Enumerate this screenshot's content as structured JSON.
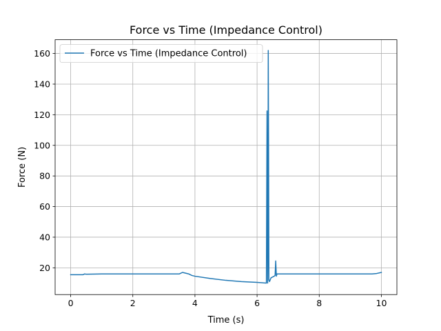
{
  "chart_data": {
    "type": "line",
    "title": "Force vs Time (Impedance Control)",
    "xlabel": "Time (s)",
    "ylabel": "Force (N)",
    "xlim": [
      -0.5,
      10.5
    ],
    "ylim": [
      2.5,
      169
    ],
    "xticks": [
      0,
      2,
      4,
      6,
      8,
      10
    ],
    "yticks": [
      20,
      40,
      60,
      80,
      100,
      120,
      140,
      160
    ],
    "grid": true,
    "legend_position": "top-left",
    "series": [
      {
        "name": "Force vs Time (Impedance Control)",
        "color": "#1f77b4",
        "x": [
          0.0,
          0.2,
          0.4,
          0.45,
          0.5,
          1.0,
          1.5,
          2.0,
          2.5,
          3.0,
          3.5,
          3.6,
          3.7,
          3.8,
          3.9,
          4.0,
          4.5,
          5.0,
          5.5,
          6.0,
          6.3,
          6.32,
          6.33,
          6.34,
          6.35,
          6.36,
          6.37,
          6.38,
          6.4,
          6.45,
          6.5,
          6.55,
          6.58,
          6.6,
          6.62,
          6.64,
          6.7,
          7.0,
          8.0,
          9.0,
          9.7,
          9.85,
          10.0
        ],
        "y": [
          15.5,
          15.5,
          15.5,
          16.0,
          15.8,
          16.0,
          16.0,
          16.0,
          16.0,
          16.0,
          16.0,
          17.0,
          16.5,
          16.0,
          15.0,
          14.5,
          13.0,
          11.8,
          11.0,
          10.5,
          10.0,
          122.5,
          60.0,
          10.0,
          30.0,
          162.0,
          100.0,
          12.0,
          11.0,
          13.5,
          14.0,
          14.5,
          15.0,
          24.5,
          14.5,
          16.0,
          16.0,
          16.0,
          16.0,
          16.0,
          16.0,
          16.3,
          17.0
        ]
      }
    ]
  }
}
